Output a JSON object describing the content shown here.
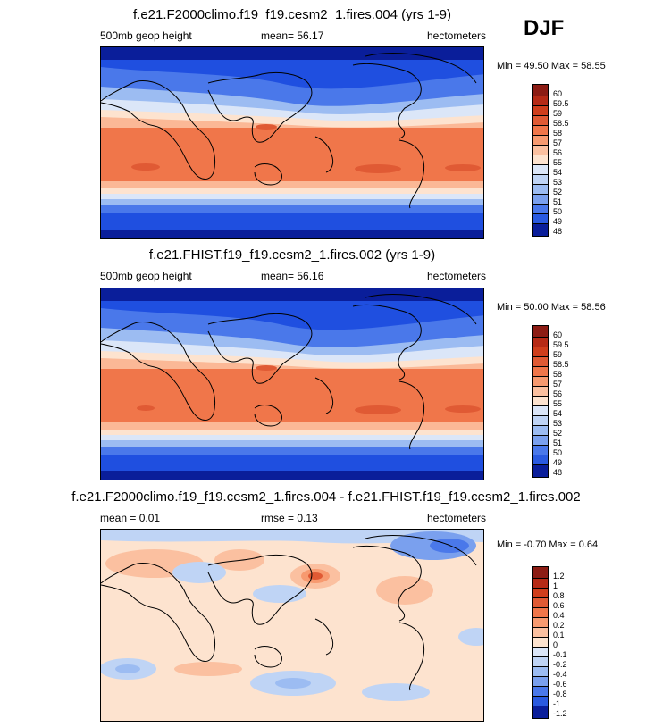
{
  "season": "DJF",
  "colors": {
    "blue_dark": "#0a1e9a",
    "blue_mid": "#2a5ae0",
    "blue_light": "#bfd4f5",
    "cream": "#fde3cf",
    "orange": "#f0764a",
    "orange_dark": "#e05a34",
    "red_dark": "#8c1c14"
  },
  "panels": [
    {
      "title": "f.e21.F2000climo.f19_f19.cesm2_1.fires.004 (yrs 1-9)",
      "left_label": "500mb geop height",
      "center_label": "mean=  56.17",
      "right_label": "hectometers",
      "minmax": "Min =  49.50 Max =  58.55",
      "colorbar_labels": [
        "60",
        "59.5",
        "59",
        "58.5",
        "58",
        "57",
        "56",
        "55",
        "54",
        "53",
        "52",
        "51",
        "50",
        "49",
        "48"
      ]
    },
    {
      "title": "f.e21.FHIST.f19_f19.cesm2_1.fires.002 (yrs 1-9)",
      "left_label": "500mb geop height",
      "center_label": "mean=  56.16",
      "right_label": "hectometers",
      "minmax": "Min =  50.00 Max =  58.56",
      "colorbar_labels": [
        "60",
        "59.5",
        "59",
        "58.5",
        "58",
        "57",
        "56",
        "55",
        "54",
        "53",
        "52",
        "51",
        "50",
        "49",
        "48"
      ]
    },
    {
      "title": "f.e21.F2000climo.f19_f19.cesm2_1.fires.004 - f.e21.FHIST.f19_f19.cesm2_1.fires.002",
      "left_label": "mean =   0.01",
      "center_label": "rmse =   0.13",
      "right_label": "hectometers",
      "minmax": "Min =  -0.70 Max =   0.64",
      "colorbar_labels": [
        "1.2",
        "1",
        "0.8",
        "0.6",
        "0.4",
        "0.2",
        "0.1",
        "0",
        "-0.1",
        "-0.2",
        "-0.4",
        "-0.6",
        "-0.8",
        "-1",
        "-1.2"
      ]
    }
  ],
  "chart_data": [
    {
      "type": "heatmap",
      "title": "f.e21.F2000climo.f19_f19.cesm2_1.fires.004 (yrs 1-9)",
      "variable": "500mb geop height",
      "units": "hectometers",
      "mean": 56.17,
      "min": 49.5,
      "max": 58.55,
      "levels": [
        48,
        49,
        50,
        51,
        52,
        53,
        54,
        55,
        56,
        57,
        58,
        58.5,
        59,
        59.5,
        60
      ]
    },
    {
      "type": "heatmap",
      "title": "f.e21.FHIST.f19_f19.cesm2_1.fires.002 (yrs 1-9)",
      "variable": "500mb geop height",
      "units": "hectometers",
      "mean": 56.16,
      "min": 50.0,
      "max": 58.56,
      "levels": [
        48,
        49,
        50,
        51,
        52,
        53,
        54,
        55,
        56,
        57,
        58,
        58.5,
        59,
        59.5,
        60
      ]
    },
    {
      "type": "heatmap",
      "title": "f.e21.F2000climo.f19_f19.cesm2_1.fires.004 - f.e21.FHIST.f19_f19.cesm2_1.fires.002",
      "units": "hectometers",
      "mean": 0.01,
      "rmse": 0.13,
      "min": -0.7,
      "max": 0.64,
      "levels": [
        -1.2,
        -1,
        -0.8,
        -0.6,
        -0.4,
        -0.2,
        -0.1,
        0,
        0.1,
        0.2,
        0.4,
        0.6,
        0.8,
        1,
        1.2
      ]
    }
  ]
}
